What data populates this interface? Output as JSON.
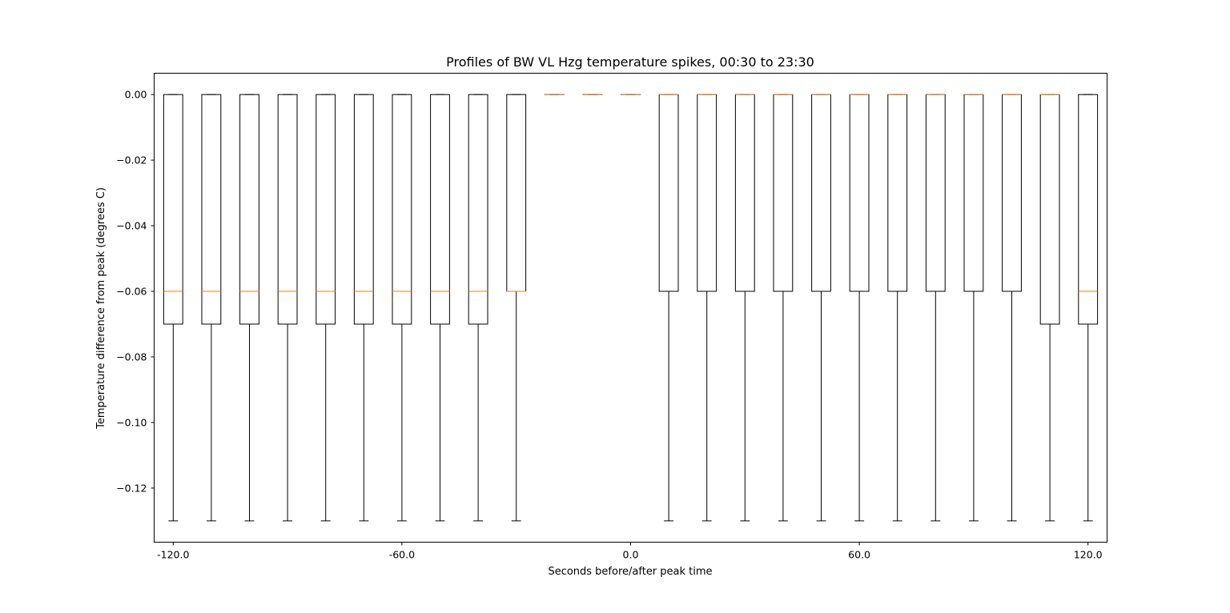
{
  "chart_data": {
    "type": "box",
    "title": "Profiles of BW VL Hzg temperature spikes, 00:30 to 23:30",
    "xlabel": "Seconds before/after peak time",
    "ylabel": "Temperature difference from peak (degrees C)",
    "xlim": [
      -125,
      125
    ],
    "ylim": [
      -0.1365,
      0.0065
    ],
    "x_ticks": [
      -120,
      -60,
      0,
      60,
      120
    ],
    "x_tick_labels": [
      "-120.0",
      "-60.0",
      "0.0",
      "60.0",
      "120.0"
    ],
    "y_ticks": [
      0.0,
      -0.02,
      -0.04,
      -0.06,
      -0.08,
      -0.1,
      -0.12
    ],
    "y_tick_labels": [
      "0.00",
      "−0.02",
      "−0.04",
      "−0.06",
      "−0.08",
      "−0.10",
      "−0.12"
    ],
    "grid": false,
    "colors": {
      "box": "#000000",
      "median": "#ff7f0e"
    },
    "boxes": [
      {
        "x": -120,
        "whisker_low": -0.13,
        "q1": -0.07,
        "median": -0.06,
        "q3": 0.0,
        "whisker_high": 0.0
      },
      {
        "x": -110,
        "whisker_low": -0.13,
        "q1": -0.07,
        "median": -0.06,
        "q3": 0.0,
        "whisker_high": 0.0
      },
      {
        "x": -100,
        "whisker_low": -0.13,
        "q1": -0.07,
        "median": -0.06,
        "q3": 0.0,
        "whisker_high": 0.0
      },
      {
        "x": -90,
        "whisker_low": -0.13,
        "q1": -0.07,
        "median": -0.06,
        "q3": 0.0,
        "whisker_high": 0.0
      },
      {
        "x": -80,
        "whisker_low": -0.13,
        "q1": -0.07,
        "median": -0.06,
        "q3": 0.0,
        "whisker_high": 0.0
      },
      {
        "x": -70,
        "whisker_low": -0.13,
        "q1": -0.07,
        "median": -0.06,
        "q3": 0.0,
        "whisker_high": 0.0
      },
      {
        "x": -60,
        "whisker_low": -0.13,
        "q1": -0.07,
        "median": -0.06,
        "q3": 0.0,
        "whisker_high": 0.0
      },
      {
        "x": -50,
        "whisker_low": -0.13,
        "q1": -0.07,
        "median": -0.06,
        "q3": 0.0,
        "whisker_high": 0.0
      },
      {
        "x": -40,
        "whisker_low": -0.13,
        "q1": -0.07,
        "median": -0.06,
        "q3": 0.0,
        "whisker_high": 0.0
      },
      {
        "x": -30,
        "whisker_low": -0.13,
        "q1": -0.06,
        "median": -0.06,
        "q3": 0.0,
        "whisker_high": 0.0
      },
      {
        "x": -20,
        "whisker_low": 0.0,
        "q1": 0.0,
        "median": 0.0,
        "q3": 0.0,
        "whisker_high": 0.0
      },
      {
        "x": -10,
        "whisker_low": 0.0,
        "q1": 0.0,
        "median": 0.0,
        "q3": 0.0,
        "whisker_high": 0.0
      },
      {
        "x": 0,
        "whisker_low": 0.0,
        "q1": 0.0,
        "median": 0.0,
        "q3": 0.0,
        "whisker_high": 0.0
      },
      {
        "x": 10,
        "whisker_low": -0.13,
        "q1": -0.06,
        "median": 0.0,
        "q3": 0.0,
        "whisker_high": 0.0
      },
      {
        "x": 20,
        "whisker_low": -0.13,
        "q1": -0.06,
        "median": 0.0,
        "q3": 0.0,
        "whisker_high": 0.0
      },
      {
        "x": 30,
        "whisker_low": -0.13,
        "q1": -0.06,
        "median": 0.0,
        "q3": 0.0,
        "whisker_high": 0.0
      },
      {
        "x": 40,
        "whisker_low": -0.13,
        "q1": -0.06,
        "median": 0.0,
        "q3": 0.0,
        "whisker_high": 0.0
      },
      {
        "x": 50,
        "whisker_low": -0.13,
        "q1": -0.06,
        "median": 0.0,
        "q3": 0.0,
        "whisker_high": 0.0
      },
      {
        "x": 60,
        "whisker_low": -0.13,
        "q1": -0.06,
        "median": 0.0,
        "q3": 0.0,
        "whisker_high": 0.0
      },
      {
        "x": 70,
        "whisker_low": -0.13,
        "q1": -0.06,
        "median": 0.0,
        "q3": 0.0,
        "whisker_high": 0.0
      },
      {
        "x": 80,
        "whisker_low": -0.13,
        "q1": -0.06,
        "median": 0.0,
        "q3": 0.0,
        "whisker_high": 0.0
      },
      {
        "x": 90,
        "whisker_low": -0.13,
        "q1": -0.06,
        "median": 0.0,
        "q3": 0.0,
        "whisker_high": 0.0
      },
      {
        "x": 100,
        "whisker_low": -0.13,
        "q1": -0.06,
        "median": 0.0,
        "q3": 0.0,
        "whisker_high": 0.0
      },
      {
        "x": 110,
        "whisker_low": -0.13,
        "q1": -0.07,
        "median": 0.0,
        "q3": 0.0,
        "whisker_high": 0.0
      },
      {
        "x": 120,
        "whisker_low": -0.13,
        "q1": -0.07,
        "median": -0.06,
        "q3": 0.0,
        "whisker_high": 0.0
      }
    ]
  }
}
